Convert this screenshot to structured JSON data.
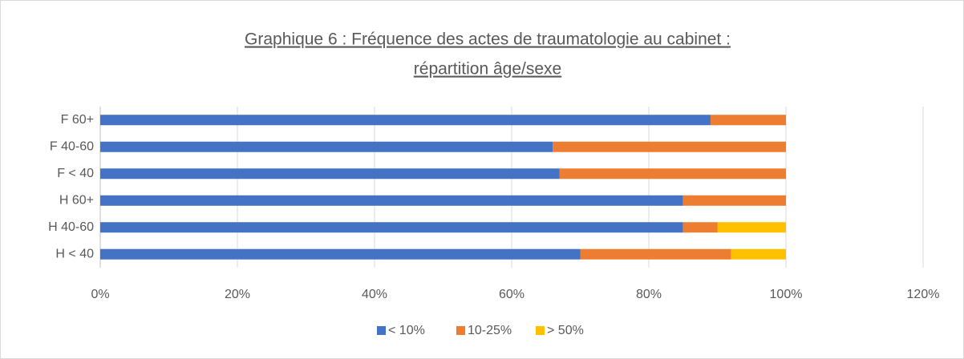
{
  "chart_data": {
    "type": "bar",
    "orientation": "horizontal",
    "stacked": true,
    "title": [
      "Graphique 6 : Fréquence des actes de traumatologie au cabinet :",
      "répartition âge/sexe"
    ],
    "categories": [
      "F 60+",
      "F 40-60",
      "F < 40",
      "H 60+",
      "H 40-60",
      "H < 40"
    ],
    "series": [
      {
        "name": "< 10%",
        "color": "#4472c4",
        "values": [
          89,
          66,
          67,
          85,
          85,
          70
        ]
      },
      {
        "name": "10-25%",
        "color": "#ed7d31",
        "values": [
          11,
          34,
          33,
          15,
          5,
          22
        ]
      },
      {
        "name": "> 50%",
        "color": "#ffc000",
        "values": [
          0,
          0,
          0,
          0,
          10,
          8
        ]
      }
    ],
    "xlim": [
      0,
      120
    ],
    "xticks": [
      {
        "value": 0,
        "label": "0%"
      },
      {
        "value": 20,
        "label": "20%"
      },
      {
        "value": 40,
        "label": "40%"
      },
      {
        "value": 60,
        "label": "60%"
      },
      {
        "value": 80,
        "label": "80%"
      },
      {
        "value": 100,
        "label": "100%"
      },
      {
        "value": 120,
        "label": "120%"
      }
    ],
    "grid": true,
    "legend": "bottom"
  }
}
